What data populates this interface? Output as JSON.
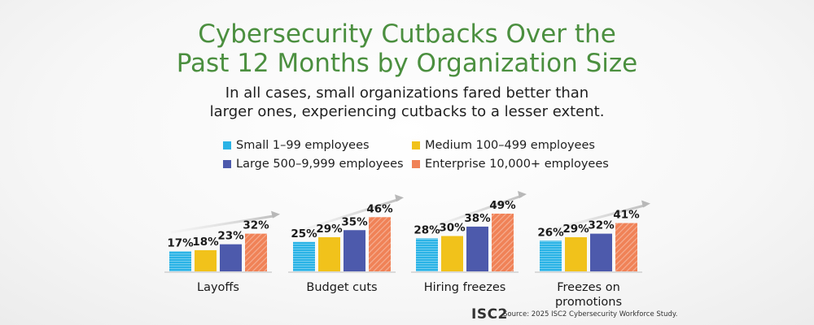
{
  "header": {
    "title_line1": "Cybersecurity Cutbacks Over the",
    "title_line2": "Past 12 Months by Organization Size",
    "subtitle_line1": "In all cases, small organizations fared better than",
    "subtitle_line2": "larger ones, experiencing cutbacks to a lesser extent."
  },
  "legend": {
    "small": "Small 1–99 employees",
    "medium": "Medium 100–499 employees",
    "large": "Large 500–9,999 employees",
    "enterprise": "Enterprise 10,000+ employees"
  },
  "colors": {
    "small": "#2ab3e6",
    "medium": "#f1c21b",
    "large": "#4d5aac",
    "enterprise": "#f08257",
    "title": "#4b8f3f"
  },
  "chart_data": {
    "type": "bar",
    "categories": [
      "Layoffs",
      "Budget cuts",
      "Hiring freezes",
      "Freezes on promotions"
    ],
    "category_lines": [
      [
        "Layoffs"
      ],
      [
        "Budget cuts"
      ],
      [
        "Hiring freezes"
      ],
      [
        "Freezes on",
        "promotions"
      ]
    ],
    "series": [
      {
        "name": "Small 1–99 employees",
        "key": "small",
        "values": [
          17,
          25,
          28,
          26
        ]
      },
      {
        "name": "Medium 100–499 employees",
        "key": "medium",
        "values": [
          18,
          29,
          30,
          29
        ]
      },
      {
        "name": "Large 500–9,999 employees",
        "key": "large",
        "values": [
          23,
          35,
          38,
          32
        ]
      },
      {
        "name": "Enterprise 10,000+ employees",
        "key": "enterprise",
        "values": [
          32,
          46,
          49,
          41
        ]
      }
    ],
    "value_suffix": "%",
    "ylim": [
      0,
      50
    ],
    "grid": false,
    "legend_position": "top"
  },
  "footer": {
    "logo": "ISC2",
    "source": "Source: 2025 ISC2 Cybersecurity Workforce Study."
  }
}
